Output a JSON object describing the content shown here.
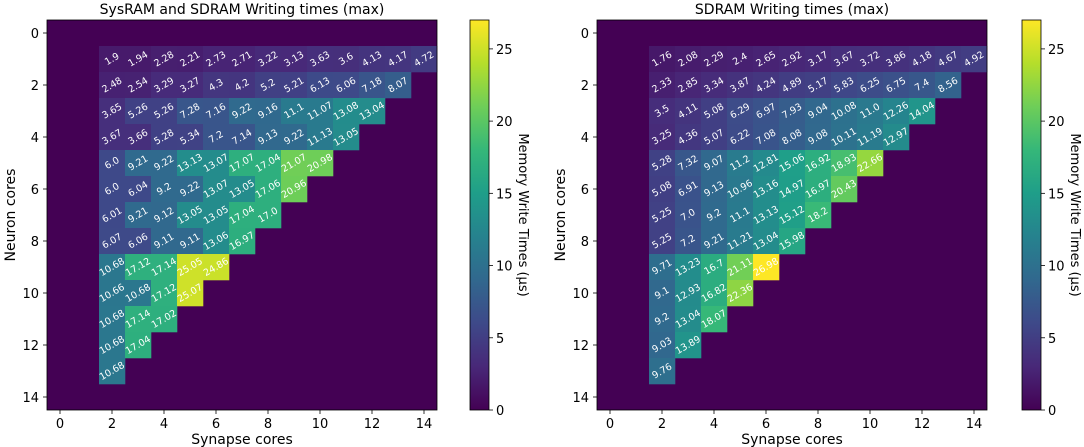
{
  "chart_data": [
    {
      "type": "heatmap",
      "title": "SysRAM and SDRAM Writing times (max)",
      "xlabel": "Synapse cores",
      "ylabel": "Neuron cores",
      "x_ticks": [
        "0",
        "2",
        "4",
        "6",
        "8",
        "10",
        "12",
        "14"
      ],
      "y_ticks": [
        "0",
        "2",
        "4",
        "6",
        "8",
        "10",
        "12",
        "14"
      ],
      "xlim": [
        -0.5,
        14.5
      ],
      "ylim": [
        14.5,
        -0.5
      ],
      "colormap": "viridis",
      "vmin": 0,
      "vmax": 27,
      "colorbar": {
        "label": "Memory Write Times (μs)",
        "ticks": [
          "0",
          "5",
          "10",
          "15",
          "20",
          "25"
        ]
      },
      "rows": [
        {
          "row": 1,
          "start_col": 2,
          "values": [
            "1.9",
            "1.94",
            "2.28",
            "2.21",
            "2.73",
            "2.71",
            "3.22",
            "3.13",
            "3.63",
            "3.6",
            "4.13",
            "4.17",
            "4.72"
          ]
        },
        {
          "row": 2,
          "start_col": 2,
          "values": [
            "2.48",
            "2.54",
            "3.29",
            "3.27",
            "4.3",
            "4.2",
            "5.2",
            "5.21",
            "6.13",
            "6.06",
            "7.18",
            "8.07"
          ]
        },
        {
          "row": 3,
          "start_col": 2,
          "values": [
            "3.65",
            "5.26",
            "5.26",
            "7.28",
            "7.16",
            "9.22",
            "9.16",
            "11.1",
            "11.07",
            "13.08",
            "13.04"
          ]
        },
        {
          "row": 4,
          "start_col": 2,
          "values": [
            "3.67",
            "3.66",
            "5.28",
            "5.34",
            "7.2",
            "7.14",
            "9.13",
            "9.22",
            "11.13",
            "13.05"
          ]
        },
        {
          "row": 5,
          "start_col": 2,
          "values": [
            "6.0",
            "9.21",
            "9.22",
            "13.13",
            "13.07",
            "17.07",
            "17.04",
            "21.07",
            "20.98"
          ]
        },
        {
          "row": 6,
          "start_col": 2,
          "values": [
            "6.0",
            "6.04",
            "9.2",
            "9.22",
            "13.07",
            "13.05",
            "17.06",
            "20.96"
          ]
        },
        {
          "row": 7,
          "start_col": 2,
          "values": [
            "6.01",
            "9.21",
            "9.12",
            "13.05",
            "13.05",
            "17.04",
            "17.0"
          ]
        },
        {
          "row": 8,
          "start_col": 2,
          "values": [
            "6.07",
            "6.06",
            "9.11",
            "9.11",
            "13.06",
            "16.97"
          ]
        },
        {
          "row": 9,
          "start_col": 2,
          "values": [
            "10.68",
            "17.12",
            "17.14",
            "25.05",
            "24.86"
          ]
        },
        {
          "row": 10,
          "start_col": 2,
          "values": [
            "10.66",
            "10.68",
            "17.12",
            "25.07"
          ]
        },
        {
          "row": 11,
          "start_col": 2,
          "values": [
            "10.68",
            "17.14",
            "17.02"
          ]
        },
        {
          "row": 12,
          "start_col": 2,
          "values": [
            "10.68",
            "17.04"
          ]
        },
        {
          "row": 13,
          "start_col": 2,
          "values": [
            "10.68"
          ]
        }
      ]
    },
    {
      "type": "heatmap",
      "title": "SDRAM Writing times (max)",
      "xlabel": "Synapse cores",
      "ylabel": "Neuron cores",
      "x_ticks": [
        "0",
        "2",
        "4",
        "6",
        "8",
        "10",
        "12",
        "14"
      ],
      "y_ticks": [
        "0",
        "2",
        "4",
        "6",
        "8",
        "10",
        "12",
        "14"
      ],
      "xlim": [
        -0.5,
        14.5
      ],
      "ylim": [
        14.5,
        -0.5
      ],
      "colormap": "viridis",
      "vmin": 0,
      "vmax": 27,
      "colorbar": {
        "label": "Memory Write Times (μs)",
        "ticks": [
          "0",
          "5",
          "10",
          "15",
          "20",
          "25"
        ]
      },
      "rows": [
        {
          "row": 1,
          "start_col": 2,
          "values": [
            "1.76",
            "2.08",
            "2.29",
            "2.4",
            "2.65",
            "2.92",
            "3.17",
            "3.67",
            "3.72",
            "3.86",
            "4.18",
            "4.67",
            "4.92"
          ]
        },
        {
          "row": 2,
          "start_col": 2,
          "values": [
            "2.33",
            "2.85",
            "3.34",
            "3.87",
            "4.24",
            "4.89",
            "5.17",
            "5.83",
            "6.25",
            "6.75",
            "7.4",
            "8.56"
          ]
        },
        {
          "row": 3,
          "start_col": 2,
          "values": [
            "3.5",
            "4.11",
            "5.08",
            "6.29",
            "6.97",
            "7.93",
            "9.04",
            "10.08",
            "11.0",
            "12.26",
            "14.04"
          ]
        },
        {
          "row": 4,
          "start_col": 2,
          "values": [
            "3.25",
            "4.36",
            "5.07",
            "6.22",
            "7.08",
            "8.08",
            "9.08",
            "10.11",
            "11.19",
            "12.97"
          ]
        },
        {
          "row": 5,
          "start_col": 2,
          "values": [
            "5.28",
            "7.32",
            "9.07",
            "11.2",
            "12.81",
            "15.06",
            "16.92",
            "18.93",
            "22.66"
          ]
        },
        {
          "row": 6,
          "start_col": 2,
          "values": [
            "5.08",
            "6.91",
            "9.13",
            "10.96",
            "13.16",
            "14.97",
            "16.97",
            "20.43"
          ]
        },
        {
          "row": 7,
          "start_col": 2,
          "values": [
            "5.25",
            "7.0",
            "9.2",
            "11.1",
            "13.13",
            "15.12",
            "18.2"
          ]
        },
        {
          "row": 8,
          "start_col": 2,
          "values": [
            "5.25",
            "7.2",
            "9.21",
            "11.21",
            "13.04",
            "15.98"
          ]
        },
        {
          "row": 9,
          "start_col": 2,
          "values": [
            "9.71",
            "13.23",
            "16.7",
            "21.11",
            "26.98"
          ]
        },
        {
          "row": 10,
          "start_col": 2,
          "values": [
            "9.1",
            "12.93",
            "16.82",
            "22.36"
          ]
        },
        {
          "row": 11,
          "start_col": 2,
          "values": [
            "9.2",
            "13.04",
            "18.07"
          ]
        },
        {
          "row": 12,
          "start_col": 2,
          "values": [
            "9.03",
            "13.89"
          ]
        },
        {
          "row": 13,
          "start_col": 2,
          "values": [
            "9.76"
          ]
        }
      ]
    }
  ]
}
